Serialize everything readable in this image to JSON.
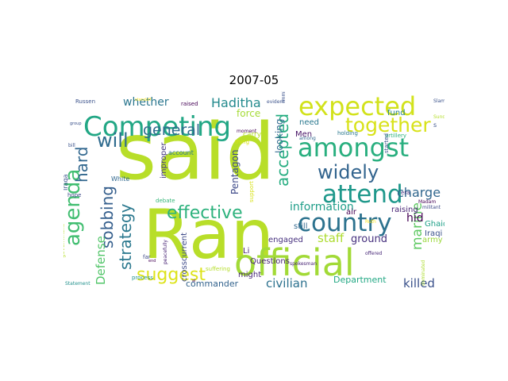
{
  "title": "2007-05",
  "words": [
    {
      "text": "said",
      "color": "#b8de29"
    },
    {
      "text": "Ran",
      "color": "#b8de29"
    },
    {
      "text": "official",
      "color": "#a2da37"
    },
    {
      "text": "Competing",
      "color": "#22a785"
    },
    {
      "text": "expected",
      "color": "#d2e21b"
    },
    {
      "text": "amongst",
      "color": "#29af7f"
    },
    {
      "text": "country",
      "color": "#2c728e"
    },
    {
      "text": "attend",
      "color": "#1f988b"
    },
    {
      "text": "agenda",
      "color": "#42be71"
    },
    {
      "text": "together",
      "color": "#d8e219"
    },
    {
      "text": "widely",
      "color": "#32648e"
    },
    {
      "text": "effective",
      "color": "#2db27d"
    },
    {
      "text": "suggest",
      "color": "#dde318"
    },
    {
      "text": "sobbing",
      "color": "#355f8d"
    },
    {
      "text": "strategy",
      "color": "#2a788e"
    },
    {
      "text": "accepted",
      "color": "#26ad81"
    },
    {
      "text": "will",
      "color": "#2f6b8e"
    },
    {
      "text": "general",
      "color": "#2f6c8e"
    },
    {
      "text": "hard",
      "color": "#31678e"
    },
    {
      "text": "Haditha",
      "color": "#238a8d"
    },
    {
      "text": "charge",
      "color": "#31678e"
    },
    {
      "text": "whether",
      "color": "#2a768e"
    },
    {
      "text": "information",
      "color": "#1f9e89"
    },
    {
      "text": "marine",
      "color": "#5ec962"
    },
    {
      "text": "civilian",
      "color": "#2c718e"
    },
    {
      "text": "killed",
      "color": "#3b528b"
    },
    {
      "text": "staff",
      "color": "#addc30"
    },
    {
      "text": "ground",
      "color": "#46307e"
    },
    {
      "text": "Defense",
      "color": "#52c569"
    },
    {
      "text": "commander",
      "color": "#33638d"
    },
    {
      "text": "hid",
      "color": "#440154"
    },
    {
      "text": "Department",
      "color": "#22a884"
    },
    {
      "text": "Pentagon",
      "color": "#3e4a89"
    },
    {
      "text": "looking",
      "color": "#31688e"
    },
    {
      "text": "engaged",
      "color": "#46307e"
    },
    {
      "text": "might",
      "color": "#482878"
    },
    {
      "text": "raising",
      "color": "#482475"
    },
    {
      "text": "Ghaidan",
      "color": "#1fa088"
    },
    {
      "text": "fund",
      "color": "#26828e"
    },
    {
      "text": "Iraqi",
      "color": "#3b528b"
    },
    {
      "text": "army",
      "color": "#9bd93c"
    },
    {
      "text": "Men",
      "color": "#471365"
    },
    {
      "text": "need",
      "color": "#2a788e"
    },
    {
      "text": "force",
      "color": "#a5db36"
    },
    {
      "text": "still",
      "color": "#31688e"
    },
    {
      "text": "Li",
      "color": "#482576"
    },
    {
      "text": "improper",
      "color": "#453781"
    },
    {
      "text": "crosscurrent",
      "color": "#3e4a89"
    },
    {
      "text": "Questions",
      "color": "#482475"
    },
    {
      "text": "air",
      "color": "#440154"
    },
    {
      "text": "carry",
      "color": "#b5de2b"
    },
    {
      "text": "account",
      "color": "#2a788e"
    },
    {
      "text": "White",
      "color": "#31688e"
    },
    {
      "text": "Iraqa",
      "color": "#3b528b"
    },
    {
      "text": "raised",
      "color": "#440154"
    },
    {
      "text": "holding",
      "color": "#2a788e"
    },
    {
      "text": "artillery",
      "color": "#2db27d"
    },
    {
      "text": "Russen",
      "color": "#3b528b"
    },
    {
      "text": "government",
      "color": "#b5de2b"
    },
    {
      "text": "thing",
      "color": "#d8e219"
    },
    {
      "text": "debate",
      "color": "#35b779"
    },
    {
      "text": "started",
      "color": "#3b528b"
    },
    {
      "text": "support",
      "color": "#d8e219"
    },
    {
      "text": "suffering",
      "color": "#b5de2b"
    },
    {
      "text": "process",
      "color": "#21918c"
    },
    {
      "text": "era",
      "color": "#46307e"
    },
    {
      "text": "far",
      "color": "#3e4a89"
    },
    {
      "text": "hope",
      "color": "#3e4a89"
    },
    {
      "text": "moment",
      "color": "#440154"
    },
    {
      "text": "evident",
      "color": "#3b528b"
    },
    {
      "text": "among",
      "color": "#31688e"
    },
    {
      "text": "Slam",
      "color": "#3b528b"
    },
    {
      "text": "Sunday",
      "color": "#b5de2b"
    },
    {
      "text": "immigration",
      "color": "#3b528b"
    },
    {
      "text": "peacefully",
      "color": "#482475"
    },
    {
      "text": "spokesman",
      "color": "#482475"
    },
    {
      "text": "militant",
      "color": "#3e4a89"
    },
    {
      "text": "offered",
      "color": "#482878"
    },
    {
      "text": "dominated",
      "color": "#addc30"
    },
    {
      "text": "Statement",
      "color": "#21918c"
    },
    {
      "text": "Madam",
      "color": "#440154"
    },
    {
      "text": "Ruth",
      "color": "#fde725"
    },
    {
      "text": "bill",
      "color": "#3b528b"
    },
    {
      "text": "end",
      "color": "#440154"
    },
    {
      "text": "al",
      "color": "#440154"
    },
    {
      "text": "group",
      "color": "#3b528b"
    },
    {
      "text": "standoff",
      "color": "#fde725"
    },
    {
      "text": "s",
      "color": "#3b528b"
    }
  ]
}
